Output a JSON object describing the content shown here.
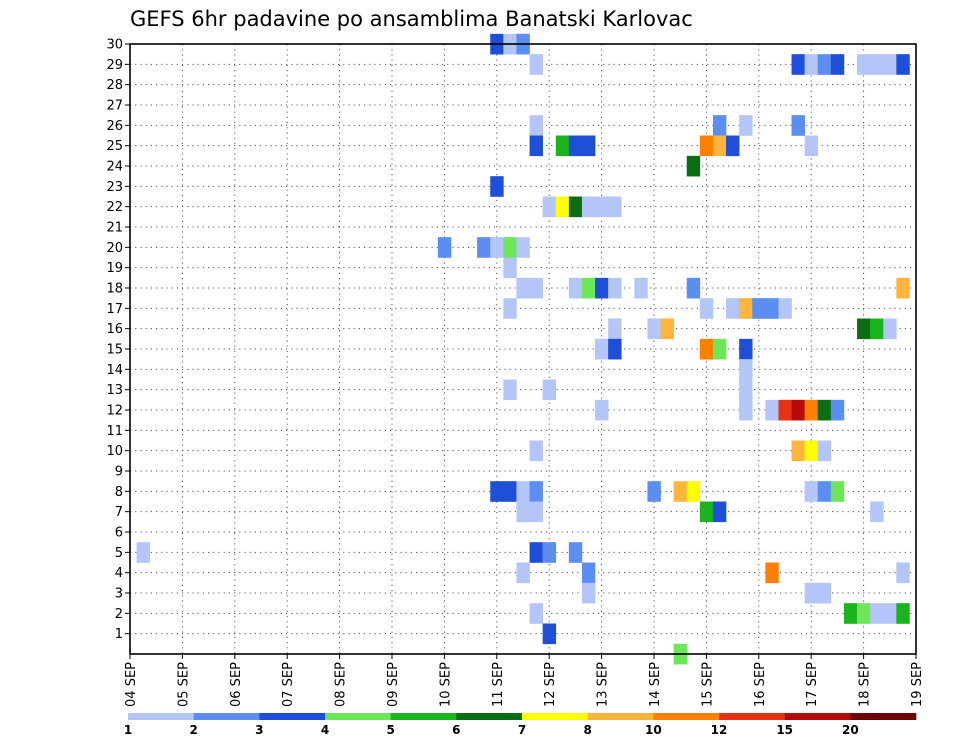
{
  "chart_data": {
    "type": "heatmap",
    "title": "GEFS 6hr padavine po ansamblima Banatski Karlovac",
    "xlabel": "",
    "ylabel": "",
    "x_ticks": [
      "04 SEP",
      "05 SEP",
      "06 SEP",
      "07 SEP",
      "08 SEP",
      "09 SEP",
      "10 SEP",
      "11 SEP",
      "12 SEP",
      "13 SEP",
      "14 SEP",
      "15 SEP",
      "16 SEP",
      "17 SEP",
      "18 SEP",
      "19 SEP"
    ],
    "y_ticks": [
      1,
      2,
      3,
      4,
      5,
      6,
      7,
      8,
      9,
      10,
      11,
      12,
      13,
      14,
      15,
      16,
      17,
      18,
      19,
      20,
      21,
      22,
      23,
      24,
      25,
      26,
      27,
      28,
      29,
      30
    ],
    "x_unit": "6-hour step from 04 SEP 00z",
    "xlim": [
      0,
      60
    ],
    "ylim": [
      0,
      30
    ],
    "grid": true,
    "colorbar": {
      "labels": [
        "1",
        "2",
        "3",
        "4",
        "5",
        "6",
        "7",
        "8",
        "10",
        "12",
        "15",
        "20"
      ],
      "colors": [
        "#b3c6f7",
        "#5b8ef0",
        "#1f4fd8",
        "#6ee65a",
        "#19b41e",
        "#0b6e14",
        "#ffff00",
        "#ffb43c",
        "#ff7f00",
        "#e63214",
        "#b40a0a",
        "#6e0000"
      ]
    },
    "cells": [
      {
        "m": 30,
        "t": 28,
        "c": 3
      },
      {
        "m": 30,
        "t": 29,
        "c": 1
      },
      {
        "m": 30,
        "t": 30,
        "c": 2
      },
      {
        "m": 29,
        "t": 31,
        "c": 1
      },
      {
        "m": 29,
        "t": 51,
        "c": 3
      },
      {
        "m": 29,
        "t": 52,
        "c": 1
      },
      {
        "m": 29,
        "t": 53,
        "c": 2
      },
      {
        "m": 29,
        "t": 54,
        "c": 3
      },
      {
        "m": 29,
        "t": 56,
        "c": 1
      },
      {
        "m": 29,
        "t": 57,
        "c": 1
      },
      {
        "m": 29,
        "t": 58,
        "c": 1
      },
      {
        "m": 29,
        "t": 59,
        "c": 3
      },
      {
        "m": 26,
        "t": 31,
        "c": 1
      },
      {
        "m": 26,
        "t": 45,
        "c": 2
      },
      {
        "m": 26,
        "t": 47,
        "c": 1
      },
      {
        "m": 26,
        "t": 51,
        "c": 2
      },
      {
        "m": 25,
        "t": 31,
        "c": 3
      },
      {
        "m": 25,
        "t": 33,
        "c": 5
      },
      {
        "m": 25,
        "t": 34,
        "c": 3
      },
      {
        "m": 25,
        "t": 35,
        "c": 3
      },
      {
        "m": 25,
        "t": 44,
        "c": 9
      },
      {
        "m": 25,
        "t": 45,
        "c": 8
      },
      {
        "m": 25,
        "t": 46,
        "c": 3
      },
      {
        "m": 25,
        "t": 52,
        "c": 1
      },
      {
        "m": 24,
        "t": 43,
        "c": 6
      },
      {
        "m": 23,
        "t": 28,
        "c": 3
      },
      {
        "m": 22,
        "t": 32,
        "c": 1
      },
      {
        "m": 22,
        "t": 33,
        "c": 7
      },
      {
        "m": 22,
        "t": 34,
        "c": 6
      },
      {
        "m": 22,
        "t": 35,
        "c": 1
      },
      {
        "m": 22,
        "t": 36,
        "c": 1
      },
      {
        "m": 22,
        "t": 37,
        "c": 1
      },
      {
        "m": 20,
        "t": 24,
        "c": 2
      },
      {
        "m": 20,
        "t": 27,
        "c": 2
      },
      {
        "m": 20,
        "t": 28,
        "c": 1
      },
      {
        "m": 20,
        "t": 29,
        "c": 4
      },
      {
        "m": 20,
        "t": 30,
        "c": 1
      },
      {
        "m": 19,
        "t": 29,
        "c": 1
      },
      {
        "m": 18,
        "t": 30,
        "c": 1
      },
      {
        "m": 18,
        "t": 31,
        "c": 1
      },
      {
        "m": 18,
        "t": 34,
        "c": 1
      },
      {
        "m": 18,
        "t": 35,
        "c": 4
      },
      {
        "m": 18,
        "t": 36,
        "c": 3
      },
      {
        "m": 18,
        "t": 37,
        "c": 1
      },
      {
        "m": 18,
        "t": 39,
        "c": 1
      },
      {
        "m": 18,
        "t": 43,
        "c": 2
      },
      {
        "m": 18,
        "t": 59,
        "c": 8
      },
      {
        "m": 17,
        "t": 29,
        "c": 1
      },
      {
        "m": 17,
        "t": 44,
        "c": 1
      },
      {
        "m": 17,
        "t": 46,
        "c": 1
      },
      {
        "m": 17,
        "t": 47,
        "c": 8
      },
      {
        "m": 17,
        "t": 48,
        "c": 2
      },
      {
        "m": 17,
        "t": 49,
        "c": 2
      },
      {
        "m": 17,
        "t": 50,
        "c": 1
      },
      {
        "m": 16,
        "t": 37,
        "c": 1
      },
      {
        "m": 16,
        "t": 40,
        "c": 1
      },
      {
        "m": 16,
        "t": 41,
        "c": 8
      },
      {
        "m": 16,
        "t": 56,
        "c": 6
      },
      {
        "m": 16,
        "t": 57,
        "c": 5
      },
      {
        "m": 16,
        "t": 58,
        "c": 1
      },
      {
        "m": 15,
        "t": 36,
        "c": 1
      },
      {
        "m": 15,
        "t": 37,
        "c": 3
      },
      {
        "m": 15,
        "t": 44,
        "c": 9
      },
      {
        "m": 15,
        "t": 45,
        "c": 4
      },
      {
        "m": 15,
        "t": 47,
        "c": 3
      },
      {
        "m": 14,
        "t": 47,
        "c": 1
      },
      {
        "m": 13,
        "t": 29,
        "c": 1
      },
      {
        "m": 13,
        "t": 32,
        "c": 1
      },
      {
        "m": 13,
        "t": 47,
        "c": 1
      },
      {
        "m": 12,
        "t": 36,
        "c": 1
      },
      {
        "m": 12,
        "t": 47,
        "c": 1
      },
      {
        "m": 12,
        "t": 49,
        "c": 1
      },
      {
        "m": 12,
        "t": 50,
        "c": 10
      },
      {
        "m": 12,
        "t": 51,
        "c": 11
      },
      {
        "m": 12,
        "t": 52,
        "c": 9
      },
      {
        "m": 12,
        "t": 53,
        "c": 6
      },
      {
        "m": 12,
        "t": 54,
        "c": 2
      },
      {
        "m": 10,
        "t": 31,
        "c": 1
      },
      {
        "m": 10,
        "t": 51,
        "c": 8
      },
      {
        "m": 10,
        "t": 52,
        "c": 7
      },
      {
        "m": 10,
        "t": 53,
        "c": 1
      },
      {
        "m": 8,
        "t": 28,
        "c": 3
      },
      {
        "m": 8,
        "t": 29,
        "c": 3
      },
      {
        "m": 8,
        "t": 30,
        "c": 1
      },
      {
        "m": 8,
        "t": 31,
        "c": 2
      },
      {
        "m": 8,
        "t": 40,
        "c": 2
      },
      {
        "m": 8,
        "t": 42,
        "c": 8
      },
      {
        "m": 8,
        "t": 43,
        "c": 7
      },
      {
        "m": 8,
        "t": 52,
        "c": 1
      },
      {
        "m": 8,
        "t": 53,
        "c": 2
      },
      {
        "m": 8,
        "t": 54,
        "c": 4
      },
      {
        "m": 7,
        "t": 30,
        "c": 1
      },
      {
        "m": 7,
        "t": 31,
        "c": 1
      },
      {
        "m": 7,
        "t": 44,
        "c": 5
      },
      {
        "m": 7,
        "t": 45,
        "c": 3
      },
      {
        "m": 7,
        "t": 57,
        "c": 1
      },
      {
        "m": 5,
        "t": 1,
        "c": 1
      },
      {
        "m": 5,
        "t": 31,
        "c": 3
      },
      {
        "m": 5,
        "t": 32,
        "c": 2
      },
      {
        "m": 5,
        "t": 34,
        "c": 2
      },
      {
        "m": 4,
        "t": 30,
        "c": 1
      },
      {
        "m": 4,
        "t": 35,
        "c": 2
      },
      {
        "m": 4,
        "t": 49,
        "c": 9
      },
      {
        "m": 4,
        "t": 59,
        "c": 1
      },
      {
        "m": 3,
        "t": 35,
        "c": 1
      },
      {
        "m": 3,
        "t": 52,
        "c": 1
      },
      {
        "m": 3,
        "t": 53,
        "c": 1
      },
      {
        "m": 2,
        "t": 31,
        "c": 1
      },
      {
        "m": 2,
        "t": 55,
        "c": 5
      },
      {
        "m": 2,
        "t": 56,
        "c": 4
      },
      {
        "m": 2,
        "t": 57,
        "c": 1
      },
      {
        "m": 2,
        "t": 58,
        "c": 1
      },
      {
        "m": 2,
        "t": 59,
        "c": 5
      },
      {
        "m": 1,
        "t": 32,
        "c": 3
      },
      {
        "m": 0,
        "t": 42,
        "c": 4
      }
    ]
  }
}
